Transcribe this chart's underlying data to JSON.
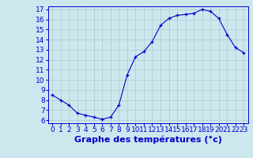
{
  "hours": [
    0,
    1,
    2,
    3,
    4,
    5,
    6,
    7,
    8,
    9,
    10,
    11,
    12,
    13,
    14,
    15,
    16,
    17,
    18,
    19,
    20,
    21,
    22,
    23
  ],
  "temperatures": [
    8.5,
    8.0,
    7.5,
    6.7,
    6.5,
    6.3,
    6.1,
    6.3,
    7.5,
    10.5,
    12.3,
    12.8,
    13.8,
    15.4,
    16.1,
    16.4,
    16.5,
    16.6,
    17.0,
    16.8,
    16.1,
    14.5,
    13.2,
    12.7
  ],
  "xlabel": "Graphe des températures (°c)",
  "ylim": [
    6,
    17
  ],
  "xlim": [
    0,
    23
  ],
  "yticks": [
    6,
    7,
    8,
    9,
    10,
    11,
    12,
    13,
    14,
    15,
    16,
    17
  ],
  "xticks": [
    0,
    1,
    2,
    3,
    4,
    5,
    6,
    7,
    8,
    9,
    10,
    11,
    12,
    13,
    14,
    15,
    16,
    17,
    18,
    19,
    20,
    21,
    22,
    23
  ],
  "line_color": "#0000cc",
  "bg_color": "#cce8ee",
  "grid_color": "#aacccc",
  "tick_fontsize": 6.5,
  "xlabel_fontsize": 8
}
